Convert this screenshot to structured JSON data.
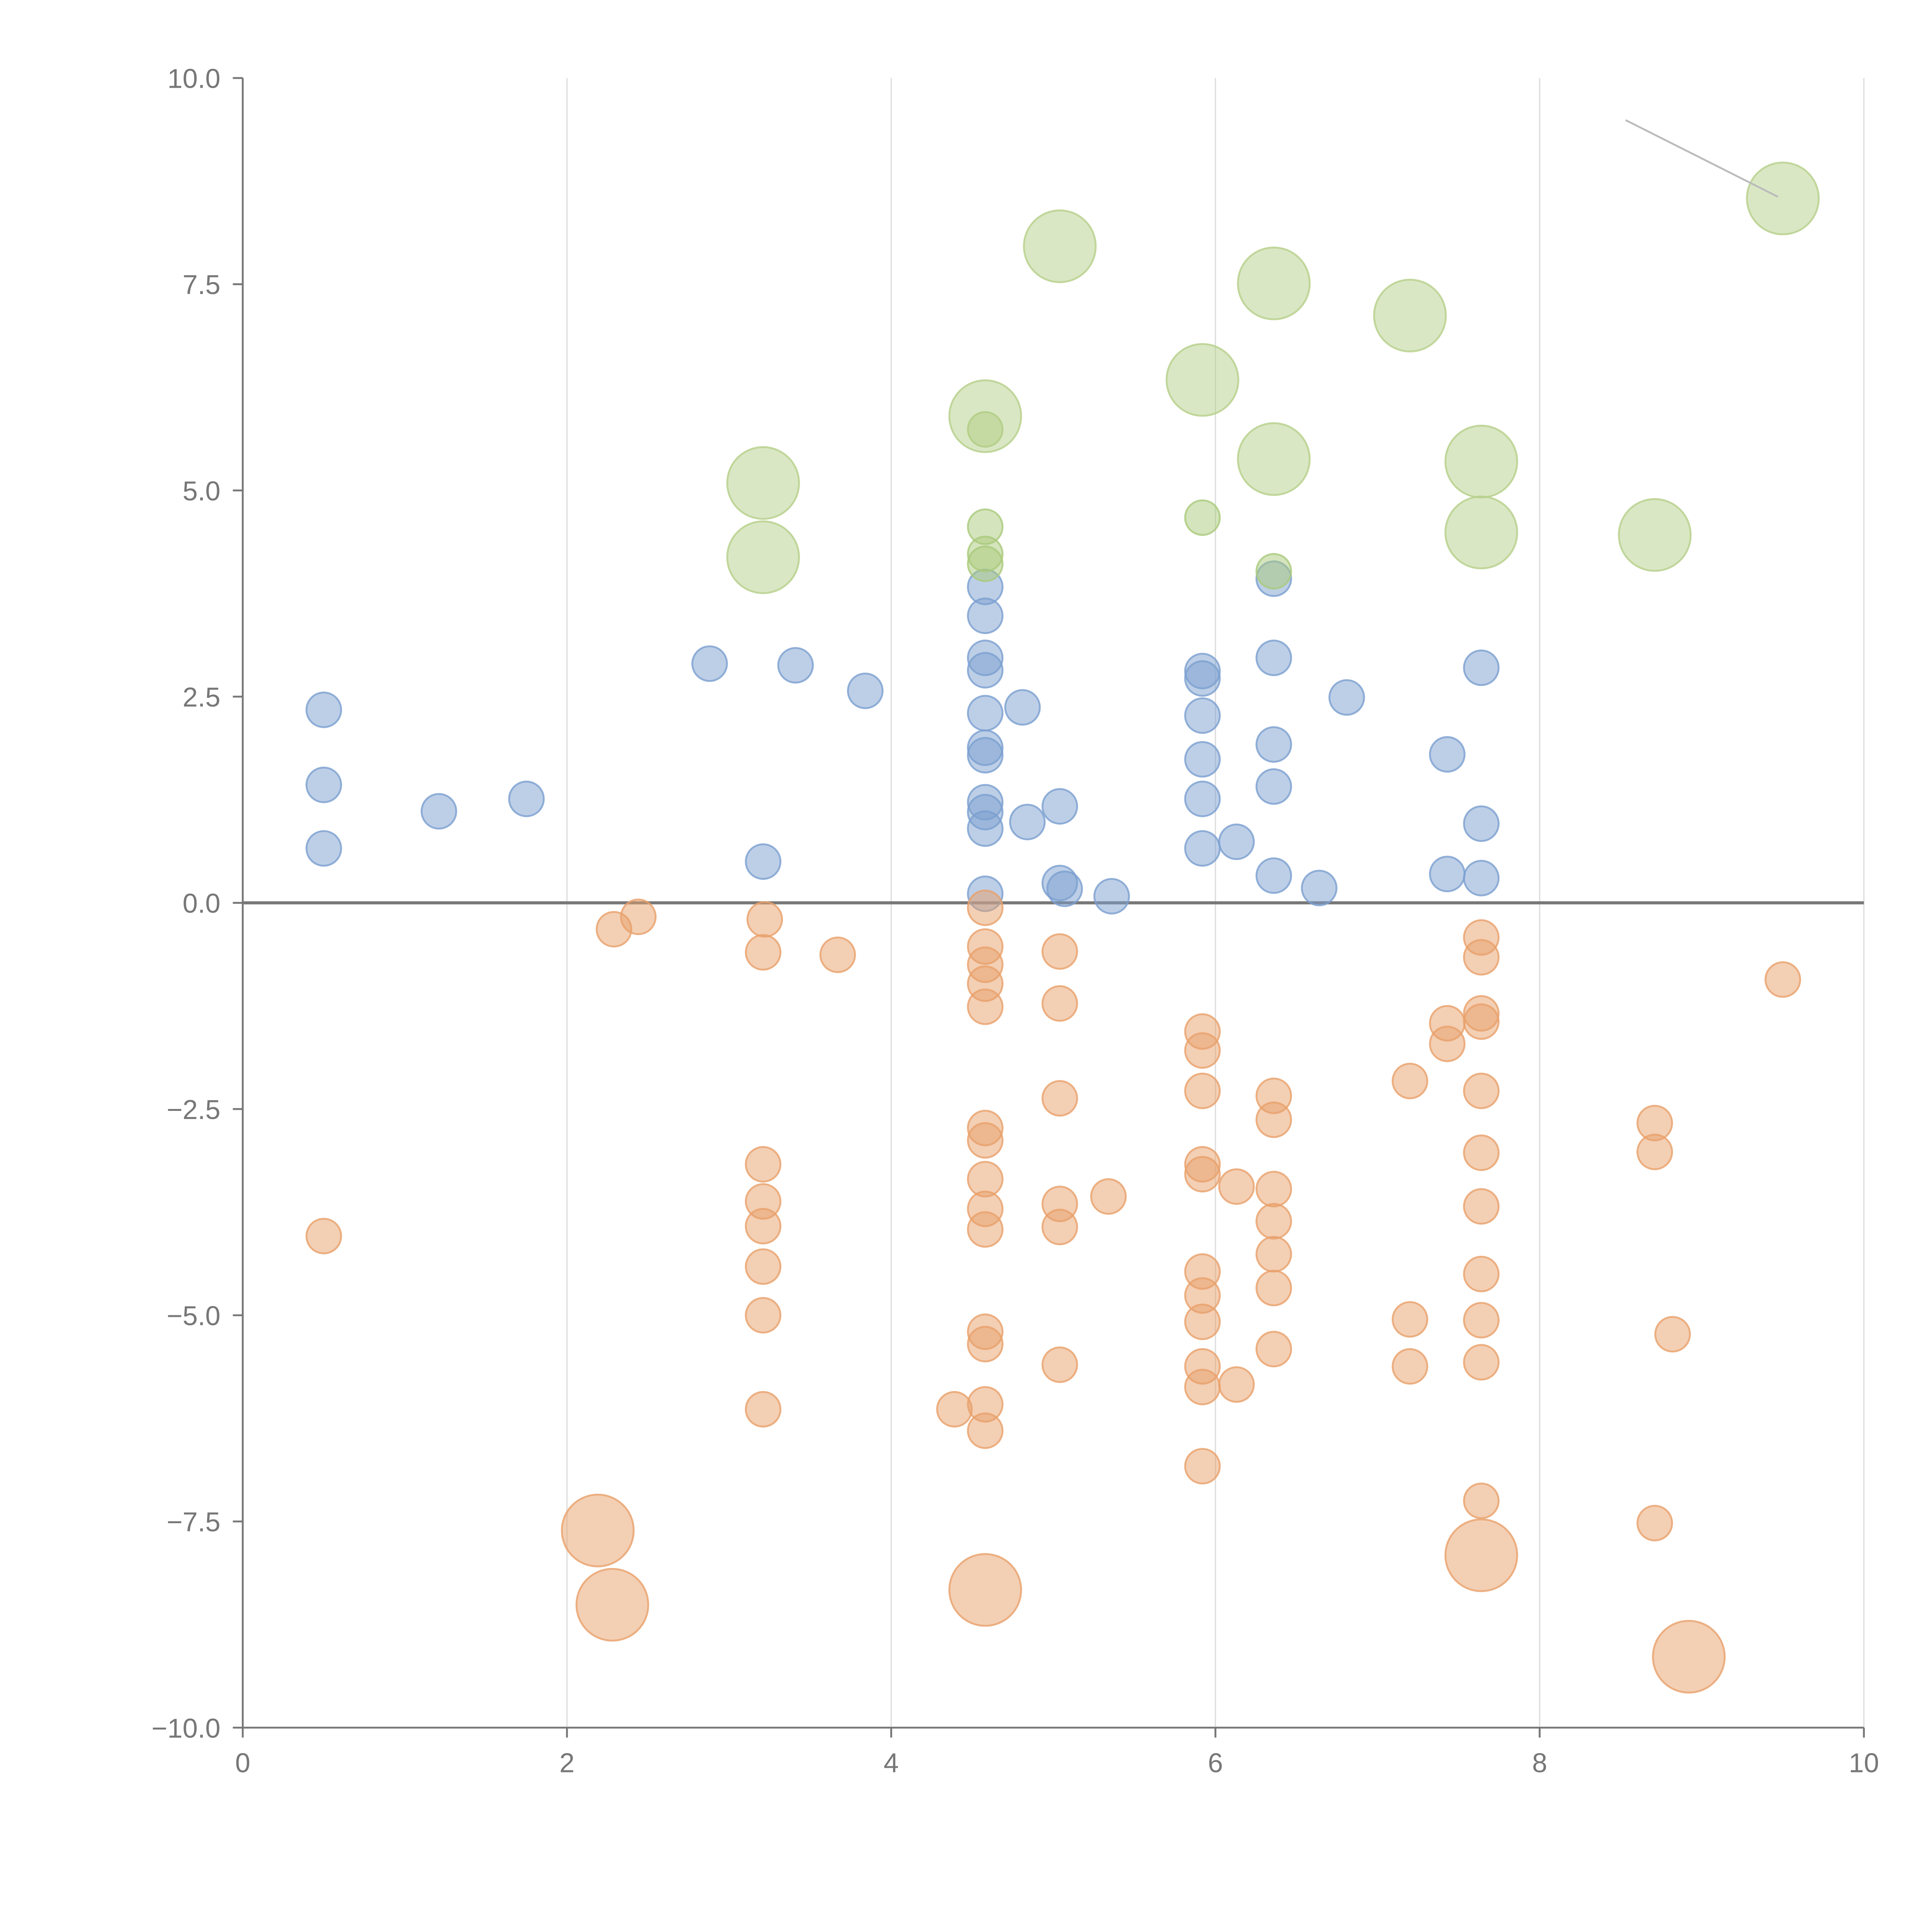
{
  "chart_data": {
    "type": "scatter",
    "title": "",
    "xlabel": "",
    "ylabel": "",
    "xlim": [
      0,
      10
    ],
    "ylim": [
      -10,
      10
    ],
    "x_ticks": [
      "0",
      "2",
      "4",
      "6",
      "8",
      "10"
    ],
    "y_ticks": [
      "10.0",
      "7.5",
      "5.0",
      "2.5",
      "0.0",
      "−2.5",
      "−5.0",
      "−7.5",
      "−10.0"
    ],
    "x_tick_values": [
      0,
      2,
      4,
      6,
      8,
      10
    ],
    "y_tick_values": [
      10,
      7.5,
      5,
      2.5,
      0,
      -2.5,
      -5,
      -7.5,
      -10
    ],
    "grid": "vertical",
    "zero_line": true,
    "annotation_line": {
      "from": [
        8.53,
        9.49
      ],
      "to": [
        9.47,
        8.56
      ]
    },
    "series": [
      {
        "name": "blue",
        "color": "#7b9fd0",
        "size": "small",
        "points": [
          [
            0.5,
            2.34
          ],
          [
            0.5,
            1.43
          ],
          [
            0.5,
            0.66
          ],
          [
            1.21,
            1.11
          ],
          [
            1.75,
            1.26
          ],
          [
            2.88,
            2.9
          ],
          [
            3.41,
            2.88
          ],
          [
            3.84,
            2.57
          ],
          [
            3.21,
            0.5
          ],
          [
            4.58,
            3.83
          ],
          [
            4.58,
            3.48
          ],
          [
            4.58,
            2.97
          ],
          [
            4.58,
            2.82
          ],
          [
            4.58,
            2.3
          ],
          [
            4.58,
            1.88
          ],
          [
            4.58,
            1.79
          ],
          [
            4.58,
            1.22
          ],
          [
            4.58,
            1.1
          ],
          [
            4.58,
            0.9
          ],
          [
            4.58,
            0.11
          ],
          [
            4.81,
            2.37
          ],
          [
            4.84,
            0.98
          ],
          [
            5.04,
            1.17
          ],
          [
            5.04,
            0.24
          ],
          [
            5.07,
            0.17
          ],
          [
            5.36,
            0.08
          ],
          [
            5.92,
            2.81
          ],
          [
            5.92,
            2.72
          ],
          [
            5.92,
            2.27
          ],
          [
            5.92,
            1.74
          ],
          [
            5.92,
            1.26
          ],
          [
            5.92,
            0.66
          ],
          [
            6.13,
            0.74
          ],
          [
            6.36,
            3.93
          ],
          [
            6.36,
            2.97
          ],
          [
            6.36,
            1.92
          ],
          [
            6.36,
            1.41
          ],
          [
            6.36,
            0.33
          ],
          [
            6.64,
            0.18
          ],
          [
            6.81,
            2.49
          ],
          [
            7.43,
            1.8
          ],
          [
            7.43,
            0.35
          ],
          [
            7.64,
            2.85
          ],
          [
            7.64,
            0.96
          ],
          [
            7.64,
            0.3
          ]
        ]
      },
      {
        "name": "green-small",
        "color": "#a9c97a",
        "size": "small",
        "points": [
          [
            4.58,
            5.74
          ],
          [
            4.58,
            4.56
          ],
          [
            4.58,
            4.23
          ],
          [
            4.58,
            4.11
          ],
          [
            5.92,
            4.67
          ],
          [
            6.36,
            4.02
          ]
        ]
      },
      {
        "name": "green-large",
        "color": "#b5d08a",
        "size": "large",
        "points": [
          [
            3.21,
            5.09
          ],
          [
            3.21,
            4.19
          ],
          [
            4.58,
            5.9
          ],
          [
            5.04,
            7.96
          ],
          [
            5.92,
            6.34
          ],
          [
            6.36,
            7.51
          ],
          [
            6.36,
            5.38
          ],
          [
            7.2,
            7.12
          ],
          [
            7.64,
            5.35
          ],
          [
            7.64,
            4.49
          ],
          [
            8.71,
            4.46
          ],
          [
            9.5,
            8.54
          ]
        ]
      },
      {
        "name": "orange-small",
        "color": "#e8a06a",
        "size": "small",
        "points": [
          [
            2.29,
            -0.32
          ],
          [
            2.44,
            -0.17
          ],
          [
            3.22,
            -0.2
          ],
          [
            3.21,
            -0.6
          ],
          [
            3.67,
            -0.63
          ],
          [
            4.58,
            -0.06
          ],
          [
            4.58,
            -0.53
          ],
          [
            4.58,
            -0.75
          ],
          [
            4.58,
            -0.98
          ],
          [
            4.58,
            -1.26
          ],
          [
            5.04,
            -0.59
          ],
          [
            5.04,
            -1.22
          ],
          [
            5.04,
            -2.37
          ],
          [
            4.58,
            -2.73
          ],
          [
            4.58,
            -2.88
          ],
          [
            4.58,
            -3.35
          ],
          [
            4.58,
            -3.71
          ],
          [
            4.58,
            -3.96
          ],
          [
            5.34,
            -3.56
          ],
          [
            5.04,
            -3.65
          ],
          [
            5.04,
            -3.93
          ],
          [
            3.21,
            -3.17
          ],
          [
            3.21,
            -3.62
          ],
          [
            3.21,
            -3.92
          ],
          [
            3.21,
            -4.41
          ],
          [
            3.21,
            -5.0
          ],
          [
            3.21,
            -6.14
          ],
          [
            0.5,
            -4.04
          ],
          [
            4.58,
            -5.2
          ],
          [
            4.58,
            -5.35
          ],
          [
            5.04,
            -5.6
          ],
          [
            4.39,
            -6.14
          ],
          [
            4.58,
            -6.08
          ],
          [
            4.58,
            -6.4
          ],
          [
            5.92,
            -1.56
          ],
          [
            5.92,
            -1.79
          ],
          [
            5.92,
            -2.28
          ],
          [
            5.92,
            -3.17
          ],
          [
            5.92,
            -3.29
          ],
          [
            6.13,
            -3.44
          ],
          [
            6.36,
            -2.34
          ],
          [
            6.36,
            -2.63
          ],
          [
            6.36,
            -3.47
          ],
          [
            6.36,
            -3.86
          ],
          [
            6.36,
            -4.26
          ],
          [
            6.36,
            -4.67
          ],
          [
            6.36,
            -5.41
          ],
          [
            5.92,
            -4.47
          ],
          [
            5.92,
            -4.76
          ],
          [
            5.92,
            -5.08
          ],
          [
            5.92,
            -5.62
          ],
          [
            5.92,
            -5.87
          ],
          [
            6.13,
            -5.84
          ],
          [
            5.92,
            -6.83
          ],
          [
            7.2,
            -2.16
          ],
          [
            7.2,
            -5.05
          ],
          [
            7.2,
            -5.62
          ],
          [
            7.43,
            -1.46
          ],
          [
            7.43,
            -1.71
          ],
          [
            7.64,
            -0.42
          ],
          [
            7.64,
            -0.66
          ],
          [
            7.64,
            -1.34
          ],
          [
            7.64,
            -1.44
          ],
          [
            7.64,
            -2.28
          ],
          [
            7.64,
            -3.03
          ],
          [
            7.64,
            -3.68
          ],
          [
            7.64,
            -4.5
          ],
          [
            7.64,
            -5.06
          ],
          [
            7.64,
            -5.57
          ],
          [
            7.64,
            -7.25
          ],
          [
            8.71,
            -2.67
          ],
          [
            8.71,
            -3.02
          ],
          [
            8.82,
            -5.23
          ],
          [
            8.71,
            -7.52
          ],
          [
            9.5,
            -0.93
          ]
        ]
      },
      {
        "name": "orange-large",
        "color": "#e8a06a",
        "size": "large",
        "points": [
          [
            2.19,
            -7.61
          ],
          [
            2.28,
            -8.51
          ],
          [
            4.58,
            -8.33
          ],
          [
            7.64,
            -7.91
          ],
          [
            8.92,
            -9.14
          ]
        ]
      }
    ]
  }
}
